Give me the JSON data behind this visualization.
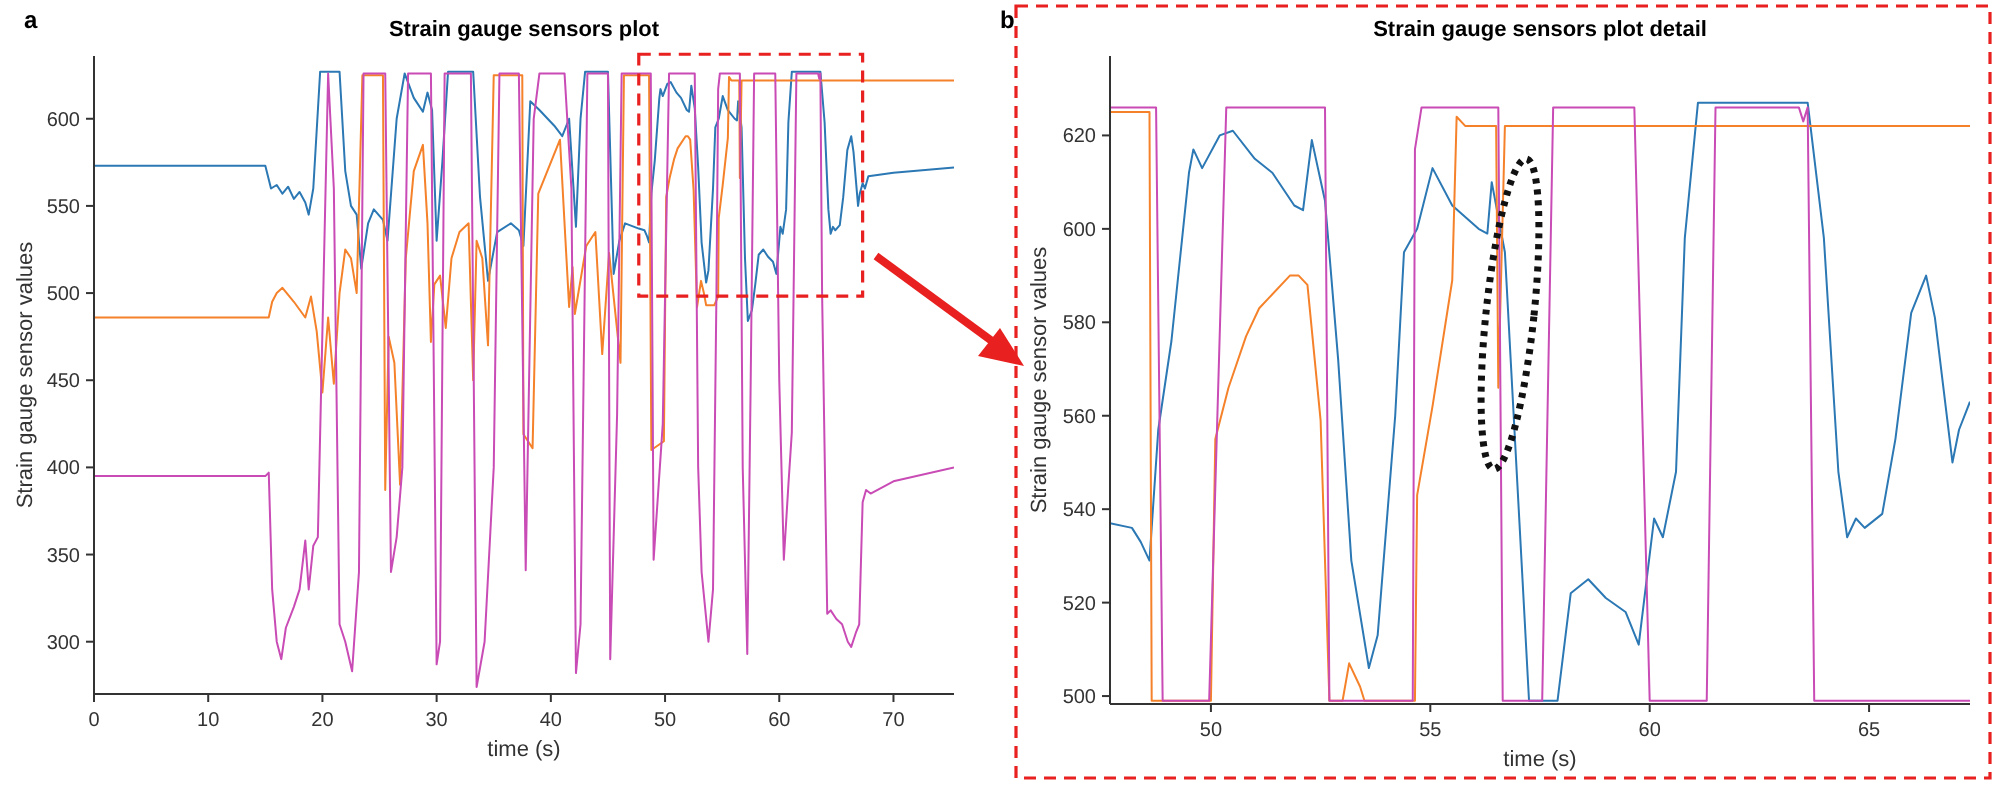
{
  "chart_data": [
    {
      "type": "line",
      "title": "Strain gauge sensors plot",
      "xlabel": "time (s)",
      "ylabel": "Strain gauge sensor values",
      "annotations": [
        "a"
      ],
      "xlim": [
        0,
        75.3
      ],
      "ylim": [
        270,
        636
      ],
      "xticks": [
        0,
        10,
        20,
        30,
        40,
        50,
        60,
        70
      ],
      "yticks": [
        300,
        350,
        400,
        450,
        500,
        550,
        600
      ],
      "series": [
        {
          "color": "#2b78b4",
          "x": [
            0,
            15,
            15.5,
            16,
            16.5,
            17,
            17.5,
            18,
            18.5,
            18.8,
            19.2,
            19.8,
            21.5,
            22,
            22.5,
            23,
            23.4,
            24,
            24.5,
            25.3,
            25.7,
            26.5,
            27.2,
            28,
            28.8,
            29.2,
            29.6,
            30,
            30.5,
            31,
            33.2,
            33.8,
            34.5,
            35.3,
            36.5,
            37.2,
            37.6,
            38.2,
            39,
            40.3,
            41,
            41.6,
            42.2,
            42.6,
            43,
            45,
            45.5,
            46,
            46.5,
            47.7,
            48.2,
            48.4,
            48.6,
            48.8,
            49.1,
            49.5,
            49.6,
            49.8,
            50.2,
            50.5,
            51,
            51.4,
            51.9,
            52.1,
            52.3,
            52.6,
            52.9,
            53.2,
            53.6,
            53.8,
            54.2,
            54.4,
            54.7,
            55.05,
            55.5,
            56.1,
            56.3,
            56.4,
            56.7,
            57,
            57.25,
            57.6,
            57.9,
            58.2,
            58.6,
            59,
            59.45,
            59.75,
            60.1,
            60.3,
            60.6,
            60.8,
            61.1,
            63.6,
            63.97,
            64.3,
            64.5,
            64.7,
            64.9,
            65.3,
            65.6,
            65.96,
            66.3,
            66.5,
            66.9,
            67.05,
            67.3,
            67.5,
            67.8,
            70,
            75.3
          ],
          "values": [
            573,
            573,
            560,
            562,
            557,
            561,
            554,
            558,
            552,
            545,
            560,
            627,
            627,
            570,
            550,
            545,
            514,
            540,
            548,
            542,
            530,
            600,
            626,
            612,
            604,
            615,
            605,
            530,
            575,
            627,
            627,
            555,
            507,
            535,
            540,
            536,
            527,
            610,
            605,
            596,
            590,
            600,
            538,
            600,
            627,
            627,
            511,
            530,
            540,
            537,
            536,
            533,
            529,
            557,
            576,
            612,
            617,
            613,
            620,
            621,
            615,
            612,
            605,
            604,
            619,
            606,
            572,
            529,
            506,
            513,
            560,
            595,
            600,
            613,
            605,
            600,
            599,
            610,
            595,
            520,
            484,
            490,
            505,
            522,
            525,
            521,
            518,
            511,
            538,
            534,
            548,
            598,
            627,
            627,
            598,
            548,
            534,
            538,
            536,
            539,
            555,
            582,
            590,
            581,
            550,
            557,
            563,
            560,
            567,
            569,
            572
          ]
        },
        {
          "color": "#f5822a",
          "x": [
            0,
            15.3,
            15.6,
            16,
            16.5,
            17.5,
            18.5,
            19,
            19.5,
            20,
            20.5,
            21,
            21.5,
            22,
            22.5,
            23,
            23.5,
            25.3,
            25.5,
            25.8,
            26.3,
            26.8,
            27.3,
            28,
            28.8,
            29.2,
            29.5,
            29.8,
            30.3,
            30.8,
            31.3,
            32,
            32.8,
            33.2,
            33.5,
            34,
            34.5,
            35,
            37.5,
            37.6,
            38.4,
            38.9,
            40.8,
            41.6,
            41.9,
            42.1,
            43.1,
            43.9,
            44.5,
            45.1,
            46.1,
            46.4,
            48.6,
            48.8,
            49.9,
            50.1,
            50.4,
            50.8,
            51.1,
            51.8,
            52,
            52.2,
            52.5,
            52.8,
            53.15,
            53.4,
            53.6,
            54.3,
            54.65,
            54.7,
            55.05,
            55.5,
            55.6,
            55.8,
            56.5,
            56.55,
            56.7,
            75.3
          ],
          "values": [
            486,
            486,
            495,
            500,
            503,
            495,
            486,
            498,
            478,
            443,
            486,
            448,
            500,
            525,
            520,
            500,
            625,
            625,
            387,
            475,
            460,
            390,
            520,
            570,
            585,
            540,
            472,
            505,
            510,
            480,
            520,
            535,
            540,
            450,
            530,
            520,
            470,
            625,
            625,
            419,
            411,
            557,
            588,
            492,
            515,
            488,
            527,
            535,
            465,
            523,
            460,
            625,
            625,
            410,
            415,
            555,
            566,
            577,
            583,
            590,
            590,
            588,
            559,
            492,
            507,
            500,
            493,
            493,
            498,
            543,
            562,
            589,
            624,
            622,
            622,
            566,
            622,
            622
          ]
        },
        {
          "color": "#c94bb5",
          "x": [
            0,
            15,
            15.3,
            15.6,
            16,
            16.4,
            16.8,
            17.5,
            18,
            18.5,
            18.8,
            19.2,
            19.6,
            20.5,
            21,
            21.5,
            22,
            22.6,
            23.2,
            23.6,
            25.5,
            26,
            26.5,
            27,
            27.5,
            29.5,
            30,
            30.3,
            30.7,
            33,
            33.5,
            34.2,
            35,
            35.5,
            37.2,
            37.8,
            38.5,
            39,
            41.2,
            41.8,
            42.2,
            42.6,
            43.2,
            45,
            45.2,
            45.8,
            46.2,
            48.75,
            49,
            49.8,
            50.35,
            52.6,
            52.9,
            53.2,
            53.8,
            54.2,
            54.5,
            54.65,
            54.8,
            56.55,
            56.8,
            57.2,
            57.5,
            57.8,
            59.65,
            60,
            60.4,
            60.8,
            61.1,
            61.5,
            63.4,
            63.5,
            63.6,
            63.75,
            64.2,
            64.5,
            65,
            65.5,
            66,
            66.3,
            66.7,
            67,
            67.3,
            67.6,
            68,
            70,
            75.3
          ],
          "values": [
            395,
            395,
            397,
            330,
            300,
            290,
            308,
            320,
            330,
            358,
            330,
            355,
            360,
            626,
            560,
            310,
            300,
            283,
            340,
            626,
            626,
            340,
            360,
            400,
            626,
            626,
            287,
            300,
            626,
            626,
            274,
            300,
            400,
            626,
            626,
            341,
            600,
            626,
            626,
            560,
            282,
            310,
            626,
            626,
            290,
            430,
            626,
            626,
            347,
            425,
            626,
            626,
            400,
            340,
            300,
            330,
            500,
            617,
            626,
            626,
            400,
            293,
            450,
            626,
            626,
            450,
            347,
            390,
            420,
            626,
            626,
            623,
            626,
            500,
            316,
            318,
            313,
            310,
            300,
            297,
            305,
            310,
            380,
            387,
            385,
            392,
            400
          ]
        }
      ]
    },
    {
      "type": "line",
      "title": "Strain gauge sensors plot detail",
      "xlabel": "time (s)",
      "ylabel": "Strain gauge sensor values",
      "annotations": [
        "b"
      ],
      "xlim": [
        47.7,
        67.3
      ],
      "ylim": [
        498.3,
        637
      ],
      "xticks": [
        50,
        55,
        60,
        65
      ],
      "yticks": [
        500,
        520,
        540,
        560,
        580,
        600,
        620
      ],
      "series": [
        {
          "color": "#2b78b4",
          "x": [
            47.7,
            48.2,
            48.4,
            48.6,
            48.8,
            49.1,
            49.5,
            49.6,
            49.8,
            50.2,
            50.5,
            51,
            51.4,
            51.9,
            52.1,
            52.3,
            52.6,
            52.9,
            53.2,
            53.6,
            53.8,
            54.2,
            54.4,
            54.7,
            55.05,
            55.5,
            56.1,
            56.3,
            56.4,
            56.7,
            57.25,
            57.9,
            58.2,
            58.6,
            59,
            59.45,
            59.75,
            60.1,
            60.3,
            60.6,
            60.8,
            61.1,
            63.6,
            63.97,
            64.3,
            64.5,
            64.7,
            64.9,
            65.3,
            65.6,
            65.96,
            66.3,
            66.5,
            66.9,
            67.05,
            67.3
          ],
          "values": [
            537,
            536,
            533,
            529,
            557,
            576,
            612,
            617,
            613,
            620,
            621,
            615,
            612,
            605,
            604,
            619,
            606,
            572,
            529,
            506,
            513,
            560,
            595,
            600,
            613,
            605,
            600,
            599,
            610,
            595,
            499,
            499,
            522,
            525,
            521,
            518,
            511,
            538,
            534,
            548,
            598,
            627,
            627,
            598,
            548,
            534,
            538,
            536,
            539,
            555,
            582,
            590,
            581,
            550,
            557,
            563
          ]
        },
        {
          "color": "#f5822a",
          "x": [
            47.7,
            48.6,
            48.65,
            50,
            50.1,
            50.4,
            50.8,
            51.1,
            51.8,
            52,
            52.2,
            52.5,
            52.7,
            53,
            53.15,
            53.4,
            53.5,
            54.65,
            54.7,
            55.05,
            55.5,
            55.6,
            55.8,
            56.5,
            56.55,
            56.7,
            67.3
          ],
          "values": [
            625,
            625,
            499,
            499,
            555,
            566,
            577,
            583,
            590,
            590,
            588,
            559,
            499,
            499,
            507,
            502,
            499,
            499,
            543,
            562,
            589,
            624,
            622,
            622,
            566,
            622,
            622
          ]
        },
        {
          "color": "#c94bb5",
          "x": [
            47.7,
            48.75,
            48.9,
            49.96,
            50.35,
            52.6,
            52.7,
            54.6,
            54.65,
            54.8,
            56.55,
            56.65,
            57.55,
            57.8,
            59.65,
            60,
            61.3,
            61.5,
            63.4,
            63.5,
            63.6,
            63.75,
            67.3
          ],
          "values": [
            626,
            626,
            499,
            499,
            626,
            626,
            499,
            499,
            617,
            626,
            626,
            499,
            499,
            626,
            626,
            499,
            499,
            626,
            626,
            623,
            626,
            499,
            499
          ]
        }
      ]
    }
  ]
}
